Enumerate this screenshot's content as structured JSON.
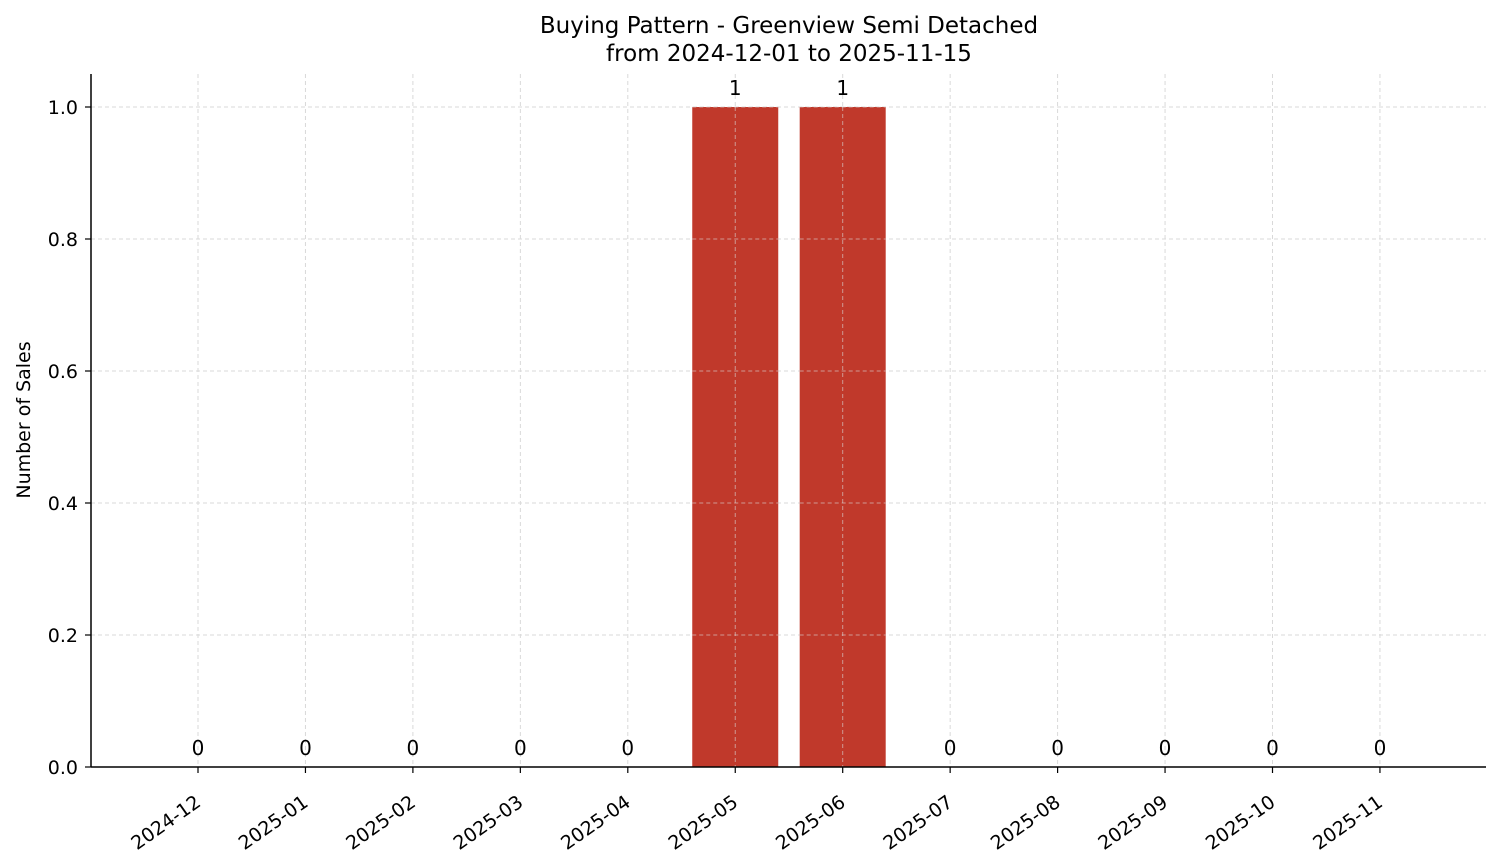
{
  "chart_data": {
    "type": "bar",
    "title": "Buying Pattern - Greenview Semi Detached",
    "subtitle": "from 2024-12-01 to 2025-11-15",
    "xlabel": "",
    "ylabel": "Number of Sales",
    "categories": [
      "2024-12",
      "2025-01",
      "2025-02",
      "2025-03",
      "2025-04",
      "2025-05",
      "2025-06",
      "2025-07",
      "2025-08",
      "2025-09",
      "2025-10",
      "2025-11"
    ],
    "values": [
      0,
      0,
      0,
      0,
      0,
      1,
      1,
      0,
      0,
      0,
      0,
      0
    ],
    "data_labels": [
      "0",
      "0",
      "0",
      "0",
      "0",
      "1",
      "1",
      "0",
      "0",
      "0",
      "0",
      "0"
    ],
    "ylim": [
      0,
      1.05
    ],
    "yticks": [
      0.0,
      0.2,
      0.4,
      0.6,
      0.8,
      1.0
    ],
    "ytick_labels": [
      "0.0",
      "0.2",
      "0.4",
      "0.6",
      "0.8",
      "1.0"
    ],
    "grid": true,
    "bar_color": "#c0392b",
    "grid_color": "#d9d9d9"
  }
}
